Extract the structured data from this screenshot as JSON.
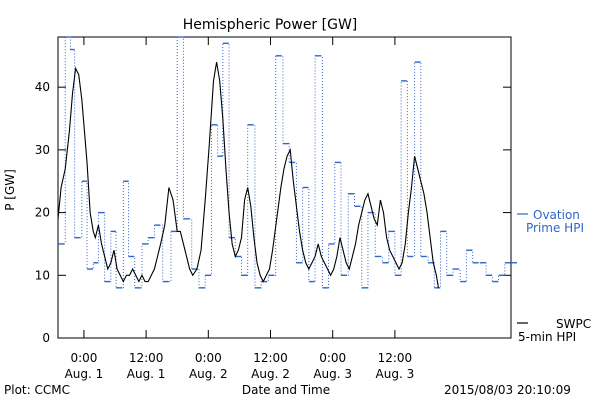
{
  "chart_data": {
    "type": "line",
    "title": "Hemispheric Power [GW]",
    "xlabel": "Date and Time",
    "ylabel": "P [GW]",
    "ylim": [
      0,
      48
    ],
    "xlim": [
      -2.5,
      41.2
    ],
    "grid": false,
    "legend": "right",
    "credit": "Plot: CCMC",
    "timestamp": "2015/08/03 20:10:09",
    "y_ticks": [
      0,
      10,
      20,
      30,
      40
    ],
    "x_ticks": [
      {
        "x": 0,
        "line1": "0:00",
        "line2": "Aug. 1"
      },
      {
        "x": 6,
        "line1": "12:00",
        "line2": "Aug. 1"
      },
      {
        "x": 12,
        "line1": "0:00",
        "line2": "Aug. 2"
      },
      {
        "x": 18,
        "line1": "12:00",
        "line2": "Aug. 2"
      },
      {
        "x": 24,
        "line1": "0:00",
        "line2": "Aug. 3"
      },
      {
        "x": 30,
        "line1": "12:00",
        "line2": "Aug. 3"
      }
    ],
    "series": [
      {
        "name": "Ovation Prime HPI",
        "legend_line1": "Ovation",
        "legend_line2": "Prime HPI",
        "color": "#2f66cc",
        "style": "dotted-step",
        "x": [
          -2.5,
          -1.8,
          -1.3,
          -0.9,
          -0.2,
          0.3,
          0.9,
          1.4,
          2.0,
          2.6,
          3.1,
          3.8,
          4.3,
          4.9,
          5.6,
          6.2,
          6.8,
          7.6,
          8.4,
          9.0,
          9.6,
          10.4,
          11.1,
          11.7,
          12.3,
          12.9,
          13.4,
          14.0,
          14.6,
          15.2,
          15.8,
          16.5,
          17.1,
          17.8,
          18.5,
          19.2,
          19.8,
          20.5,
          21.1,
          21.7,
          22.3,
          23.0,
          23.6,
          24.2,
          24.8,
          25.5,
          26.1,
          26.8,
          27.4,
          28.1,
          28.8,
          29.4,
          30.0,
          30.6,
          31.2,
          31.9,
          32.5,
          33.2,
          33.8,
          34.4,
          35.0,
          35.6,
          36.3,
          36.9,
          37.5,
          38.2,
          38.8,
          39.4,
          40.0,
          40.6,
          41.2
        ],
        "values": [
          15,
          48,
          46,
          16,
          25,
          11,
          12,
          20,
          9,
          17,
          8,
          25,
          13,
          8,
          15,
          16,
          18,
          9,
          17,
          48,
          19,
          11,
          8,
          10,
          34,
          29,
          47,
          16,
          13,
          10,
          34,
          8,
          9,
          10,
          45,
          31,
          28,
          12,
          24,
          9,
          45,
          8,
          15,
          28,
          10,
          23,
          21,
          8,
          20,
          13,
          12,
          17,
          10,
          41,
          13,
          44,
          13,
          12,
          8,
          17,
          10,
          11,
          9,
          14,
          12,
          12,
          10,
          9,
          10,
          12,
          12
        ]
      },
      {
        "name": "SWPC 5-min HPI",
        "legend_line1": "SWPC",
        "legend_line2": "5-min HPI",
        "color": "#000000",
        "style": "solid",
        "x": [
          -2.5,
          -2.2,
          -1.8,
          -1.4,
          -1.1,
          -0.8,
          -0.5,
          -0.2,
          0.0,
          0.3,
          0.6,
          0.9,
          1.1,
          1.4,
          1.7,
          2.0,
          2.3,
          2.6,
          2.9,
          3.2,
          3.5,
          3.8,
          4.1,
          4.4,
          4.7,
          5.0,
          5.3,
          5.6,
          5.9,
          6.2,
          6.5,
          6.8,
          7.1,
          7.4,
          7.8,
          8.2,
          8.6,
          9.0,
          9.3,
          9.6,
          9.9,
          10.2,
          10.5,
          10.9,
          11.3,
          11.7,
          12.1,
          12.5,
          12.8,
          13.1,
          13.4,
          13.7,
          14.0,
          14.3,
          14.6,
          14.9,
          15.2,
          15.5,
          15.8,
          16.1,
          16.4,
          16.7,
          17.0,
          17.3,
          17.6,
          17.9,
          18.2,
          18.6,
          19.0,
          19.3,
          19.6,
          19.9,
          20.2,
          20.5,
          20.8,
          21.1,
          21.4,
          21.7,
          22.0,
          22.3,
          22.6,
          22.9,
          23.2,
          23.5,
          23.8,
          24.1,
          24.4,
          24.7,
          25.0,
          25.3,
          25.6,
          25.9,
          26.2,
          26.5,
          26.8,
          27.1,
          27.4,
          27.7,
          28.0,
          28.3,
          28.6,
          28.9,
          29.2,
          29.5,
          29.8,
          30.1,
          30.4,
          30.7,
          31.0,
          31.3,
          31.6,
          31.9,
          32.2,
          32.5,
          32.8,
          33.1,
          33.4,
          33.7,
          34.0,
          34.2
        ],
        "values": [
          19,
          24,
          27,
          33,
          39,
          43,
          42,
          38,
          34,
          28,
          20,
          17,
          16,
          18,
          15,
          13,
          11,
          12,
          14,
          11,
          10,
          9,
          10,
          10,
          11,
          10,
          9,
          10,
          9,
          9,
          10,
          11,
          13,
          15,
          18,
          24,
          22,
          17,
          17,
          15,
          13,
          11,
          10,
          11,
          14,
          22,
          31,
          41,
          44,
          41,
          35,
          27,
          20,
          15,
          13,
          14,
          16,
          22,
          24,
          21,
          16,
          12,
          10,
          9,
          10,
          11,
          14,
          19,
          24,
          27,
          29,
          30,
          25,
          21,
          17,
          14,
          12,
          11,
          12,
          13,
          15,
          13,
          12,
          11,
          10,
          11,
          13,
          16,
          14,
          12,
          11,
          13,
          15,
          18,
          20,
          22,
          23,
          21,
          19,
          18,
          22,
          20,
          16,
          14,
          13,
          12,
          11,
          12,
          15,
          20,
          24,
          29,
          27,
          25,
          23,
          20,
          16,
          12,
          10,
          8
        ]
      }
    ]
  }
}
